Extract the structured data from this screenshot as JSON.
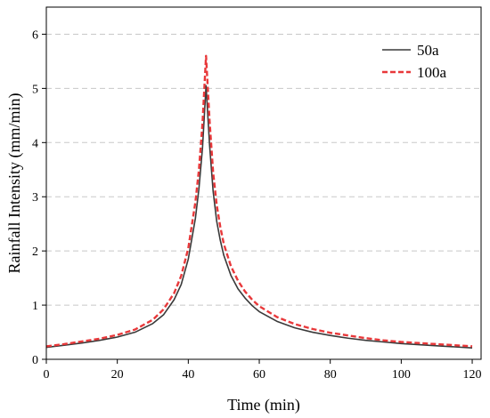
{
  "chart_data": {
    "type": "line",
    "title": "",
    "xlabel": "Time (min)",
    "ylabel": "Rainfall Intensity (mm/min)",
    "xlim": [
      0,
      122.5
    ],
    "ylim": [
      0,
      6.5
    ],
    "xticks": [
      0,
      20,
      40,
      60,
      80,
      100,
      120
    ],
    "yticks": [
      0,
      1,
      2,
      3,
      4,
      5,
      6
    ],
    "grid": "horizontal-dashed",
    "legend_position": "top-right",
    "series": [
      {
        "name": "50a",
        "color": "#3a3a3a",
        "style": "solid",
        "x": [
          0,
          5,
          10,
          15,
          20,
          25,
          30,
          33,
          36,
          38,
          40,
          42,
          43,
          44,
          45,
          46,
          47,
          48,
          49,
          50,
          52,
          54,
          56,
          58,
          60,
          65,
          70,
          75,
          80,
          85,
          90,
          95,
          100,
          105,
          110,
          115,
          120
        ],
        "values": [
          0.22,
          0.26,
          0.3,
          0.35,
          0.41,
          0.5,
          0.66,
          0.82,
          1.1,
          1.38,
          1.85,
          2.6,
          3.15,
          3.9,
          5.05,
          3.95,
          3.1,
          2.55,
          2.2,
          1.92,
          1.55,
          1.3,
          1.13,
          0.99,
          0.88,
          0.7,
          0.58,
          0.5,
          0.44,
          0.39,
          0.35,
          0.32,
          0.29,
          0.27,
          0.25,
          0.23,
          0.21
        ]
      },
      {
        "name": "100a",
        "color": "#e8383a",
        "style": "dashed",
        "x": [
          0,
          5,
          10,
          15,
          20,
          25,
          30,
          33,
          36,
          38,
          40,
          42,
          43,
          44,
          45,
          46,
          47,
          48,
          49,
          50,
          52,
          54,
          56,
          58,
          60,
          65,
          70,
          75,
          80,
          85,
          90,
          95,
          100,
          105,
          110,
          115,
          120
        ],
        "values": [
          0.24,
          0.28,
          0.33,
          0.38,
          0.45,
          0.55,
          0.73,
          0.92,
          1.22,
          1.54,
          2.05,
          2.9,
          3.5,
          4.35,
          5.6,
          4.4,
          3.45,
          2.85,
          2.45,
          2.13,
          1.72,
          1.45,
          1.25,
          1.1,
          0.98,
          0.78,
          0.65,
          0.56,
          0.49,
          0.44,
          0.39,
          0.35,
          0.32,
          0.3,
          0.28,
          0.26,
          0.24
        ]
      }
    ]
  }
}
